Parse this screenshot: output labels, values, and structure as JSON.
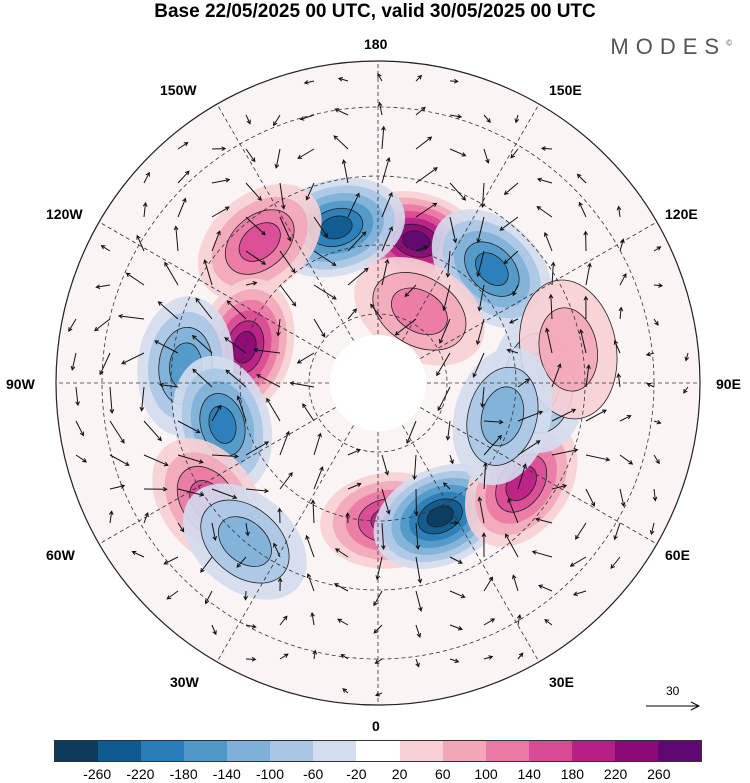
{
  "title": "Base 22/05/2025 00 UTC, valid 30/05/2025 00 UTC",
  "brand": "MODES",
  "brand_mark": "©",
  "longitude_labels": {
    "lon_180": "180",
    "lon_150e": "150E",
    "lon_120e": "120E",
    "lon_90e": "90E",
    "lon_60e": "60E",
    "lon_30e": "30E",
    "lon_0": "0",
    "lon_30w": "30W",
    "lon_60w": "60W",
    "lon_90w": "90W",
    "lon_120w": "120W",
    "lon_150w": "150W"
  },
  "reference_vector": "30",
  "colorbar": {
    "colors": [
      "#0d3b5c",
      "#0f5a8e",
      "#2a7db8",
      "#4f98c8",
      "#7fb0d8",
      "#aac6e4",
      "#d3ddee",
      "#ffffff",
      "#f7d0d4",
      "#f2a7b9",
      "#ea78a4",
      "#d94a95",
      "#b81f86",
      "#8c0a78",
      "#5e0a70"
    ],
    "labels": [
      "-260",
      "-220",
      "-180",
      "-140",
      "-100",
      "-60",
      "-20",
      "20",
      "60",
      "100",
      "140",
      "180",
      "220",
      "260"
    ]
  },
  "anomaly_cells": [
    {
      "lon": 165,
      "lat": 58,
      "value": 250
    },
    {
      "lon": -165,
      "lat": 55,
      "value": -240
    },
    {
      "lon": 135,
      "lat": 55,
      "value": -180
    },
    {
      "lon": -140,
      "lat": 50,
      "value": 140
    },
    {
      "lon": -105,
      "lat": 60,
      "value": 220
    },
    {
      "lon": -95,
      "lat": 48,
      "value": -160
    },
    {
      "lon": -75,
      "lat": 55,
      "value": -200
    },
    {
      "lon": -55,
      "lat": 45,
      "value": 160
    },
    {
      "lon": -40,
      "lat": 45,
      "value": -100
    },
    {
      "lon": 5,
      "lat": 60,
      "value": 200
    },
    {
      "lon": 25,
      "lat": 58,
      "value": -260
    },
    {
      "lon": 55,
      "lat": 52,
      "value": 200
    },
    {
      "lon": 90,
      "lat": 55,
      "value": -120
    },
    {
      "lon": 100,
      "lat": 48,
      "value": 80
    },
    {
      "lon": 150,
      "lat": 72,
      "value": 100
    },
    {
      "lon": 75,
      "lat": 62,
      "value": -100
    }
  ]
}
